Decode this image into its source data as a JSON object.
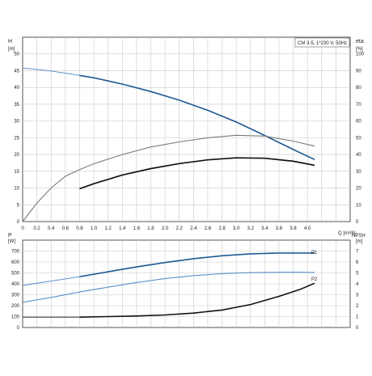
{
  "colors": {
    "blue": "#1f5a93",
    "lightblue": "#4a86c5",
    "black": "#111111",
    "grey": "#7a7a7a",
    "grid": "#c9c9c9",
    "frame": "#555555"
  },
  "chart_data": [
    {
      "type": "line",
      "name": "top",
      "title": "CM 3-5, 1*230 V, 50Hz",
      "ylabel_left": "H",
      "ylabel_left_unit": "[m]",
      "ylabel_right": "eta",
      "ylabel_right_unit": "[%]",
      "xlabel": "Q [m³/h]",
      "xlim": [
        0,
        4.6
      ],
      "ylim_left": [
        0,
        55
      ],
      "ylim_right": [
        0,
        110
      ],
      "x_ticks": [
        "0",
        "0.2",
        "0.4",
        "0.6",
        "0.8",
        "1.0",
        "1.2",
        "1.4",
        "1.6",
        "1.8",
        "2.0",
        "2.2",
        "2.4",
        "2.6",
        "2.8",
        "3.0",
        "3.2",
        "3.4",
        "3.6",
        "3.8",
        "4.0"
      ],
      "y_ticks_left": [
        "0",
        "5",
        "10",
        "15",
        "20",
        "25",
        "30",
        "35",
        "40",
        "45",
        "50"
      ],
      "y_ticks_right": [
        "0",
        "10",
        "20",
        "30",
        "40",
        "50",
        "60",
        "70",
        "80",
        "90",
        "100"
      ],
      "series": [
        {
          "axis": "left",
          "style": "head",
          "x": [
            0,
            0.2,
            0.4,
            0.6,
            0.8,
            1.0,
            1.4,
            1.8,
            2.2,
            2.6,
            3.0,
            3.4,
            3.8,
            4.1
          ],
          "y": [
            45.8,
            45.4,
            44.9,
            44.3,
            43.6,
            42.9,
            41.0,
            38.8,
            36.2,
            33.2,
            29.7,
            25.7,
            21.5,
            18.5
          ],
          "solid_from": 0.8
        },
        {
          "axis": "right",
          "style": "eta",
          "x": [
            0,
            0.2,
            0.4,
            0.6,
            0.8,
            1.0,
            1.4,
            1.8,
            2.2,
            2.6,
            3.0,
            3.4,
            3.8,
            4.1
          ],
          "y": [
            0,
            11,
            20,
            27,
            31,
            34.5,
            40,
            44.5,
            47.5,
            50,
            51.5,
            51,
            48,
            45
          ]
        },
        {
          "axis": "left",
          "style": "black",
          "x": [
            0.8,
            1.0,
            1.4,
            1.8,
            2.2,
            2.6,
            3.0,
            3.4,
            3.8,
            4.1
          ],
          "y": [
            9.8,
            11.3,
            13.9,
            15.8,
            17.3,
            18.4,
            19.0,
            18.9,
            18.0,
            16.8
          ]
        }
      ]
    },
    {
      "type": "line",
      "name": "bottom",
      "ylabel_left": "P",
      "ylabel_left_unit": "[W]",
      "ylabel_right": "NPSH",
      "ylabel_right_unit": "[m]",
      "xlim": [
        0,
        4.6
      ],
      "ylim_left": [
        0,
        800
      ],
      "ylim_right": [
        0,
        8
      ],
      "y_ticks_left": [
        "0",
        "100",
        "200",
        "300",
        "400",
        "500",
        "600",
        "700"
      ],
      "y_ticks_right": [
        "0",
        "1",
        "2",
        "3",
        "4",
        "5",
        "6",
        "7"
      ],
      "series": [
        {
          "name": "P1",
          "axis": "left",
          "style": "p1",
          "x": [
            0,
            0.4,
            0.8,
            1.2,
            1.6,
            2.0,
            2.4,
            2.8,
            3.2,
            3.6,
            4.0,
            4.1
          ],
          "y": [
            385,
            425,
            465,
            510,
            555,
            595,
            630,
            657,
            675,
            682,
            682,
            680
          ],
          "solid_from": 0.8
        },
        {
          "name": "P2",
          "axis": "left",
          "style": "p2",
          "x": [
            0,
            0.4,
            0.8,
            1.2,
            1.6,
            2.0,
            2.4,
            2.8,
            3.2,
            3.6,
            4.0,
            4.1
          ],
          "y": [
            230,
            275,
            325,
            370,
            412,
            448,
            475,
            493,
            503,
            506,
            505,
            504
          ]
        },
        {
          "axis": "right",
          "style": "npsh",
          "x": [
            0,
            0.8,
            1.2,
            1.6,
            2.0,
            2.4,
            2.8,
            3.2,
            3.6,
            3.9,
            4.1
          ],
          "y": [
            0.95,
            0.95,
            1.0,
            1.05,
            1.15,
            1.32,
            1.6,
            2.1,
            2.85,
            3.5,
            4.05
          ],
          "solid_from": 0.8
        }
      ]
    }
  ]
}
